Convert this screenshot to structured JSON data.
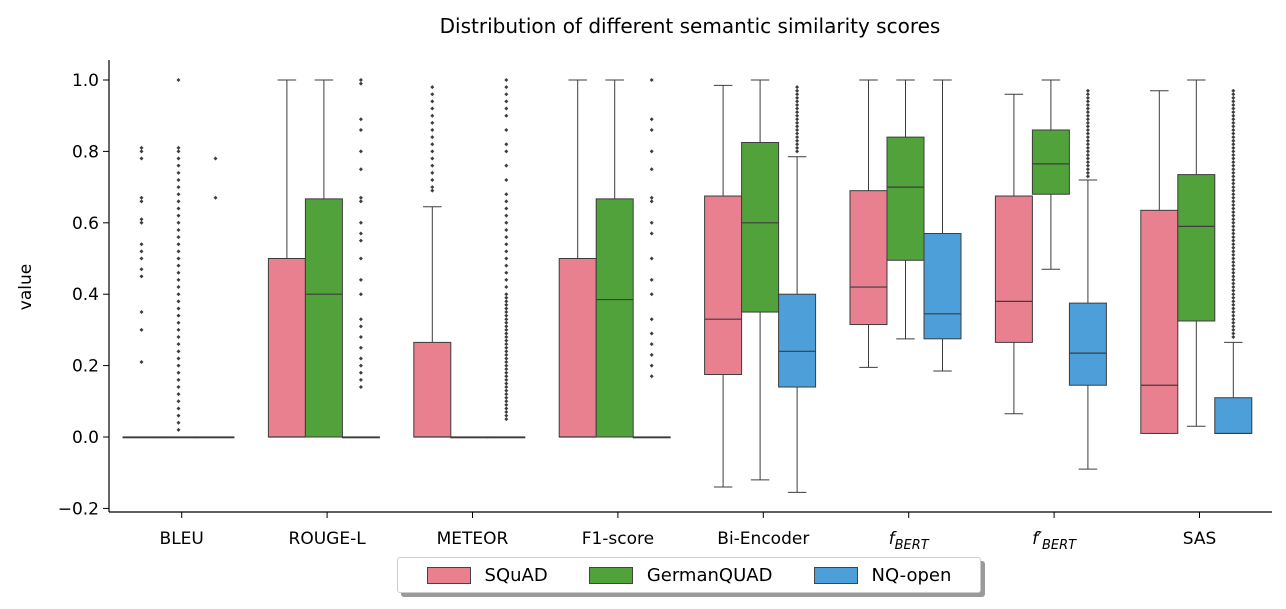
{
  "chart_data": {
    "type": "box",
    "title": "Distribution of different semantic similarity scores",
    "xlabel": "",
    "ylabel": "value",
    "ylim": [
      -0.2,
      1.05
    ],
    "yticks": [
      "−0.2",
      "0.0",
      "0.2",
      "0.4",
      "0.6",
      "0.8",
      "1.0"
    ],
    "yticks_values": [
      -0.2,
      0.0,
      0.2,
      0.4,
      0.6,
      0.8,
      1.0
    ],
    "grid": false,
    "legend_position": "bottom-center",
    "categories": [
      "BLEU",
      "ROUGE-L",
      "METEOR",
      "F1-score",
      "Bi-Encoder",
      "f_BERT",
      "f'_BERT",
      "SAS"
    ],
    "category_labels": [
      {
        "main": "BLEU",
        "sub": ""
      },
      {
        "main": "ROUGE-L",
        "sub": ""
      },
      {
        "main": "METEOR",
        "sub": ""
      },
      {
        "main": "F1-score",
        "sub": ""
      },
      {
        "main": "Bi-Encoder",
        "sub": ""
      },
      {
        "main": "f",
        "sub": "BERT"
      },
      {
        "main": "f′",
        "sub": "BERT"
      },
      {
        "main": "SAS",
        "sub": ""
      }
    ],
    "series": [
      {
        "name": "SQuAD",
        "color": "#e8808f",
        "boxes": [
          {
            "min": 0,
            "q1": 0,
            "median": 0,
            "q3": 0,
            "max": 0,
            "outliers": [
              0.21,
              0.3,
              0.35,
              0.45,
              0.47,
              0.5,
              0.52,
              0.54,
              0.6,
              0.61,
              0.66,
              0.67,
              0.78,
              0.8,
              0.81
            ]
          },
          {
            "min": 0,
            "q1": 0,
            "median": 0,
            "q3": 0.5,
            "max": 1.0,
            "outliers": []
          },
          {
            "min": 0,
            "q1": 0,
            "median": 0,
            "q3": 0.265,
            "max": 0.645,
            "outliers": [
              0.69,
              0.7,
              0.72,
              0.74,
              0.76,
              0.78,
              0.8,
              0.82,
              0.84,
              0.86,
              0.88,
              0.9,
              0.92,
              0.94,
              0.96,
              0.98
            ]
          },
          {
            "min": 0,
            "q1": 0,
            "median": 0,
            "q3": 0.5,
            "max": 1.0,
            "outliers": []
          },
          {
            "min": -0.14,
            "q1": 0.175,
            "median": 0.33,
            "q3": 0.675,
            "max": 0.985,
            "outliers": []
          },
          {
            "min": 0.195,
            "q1": 0.315,
            "median": 0.42,
            "q3": 0.69,
            "max": 1.0,
            "outliers": []
          },
          {
            "min": 0.065,
            "q1": 0.265,
            "median": 0.38,
            "q3": 0.675,
            "max": 0.96,
            "outliers": []
          },
          {
            "min": 0.01,
            "q1": 0.01,
            "median": 0.145,
            "q3": 0.635,
            "max": 0.97,
            "outliers": []
          }
        ]
      },
      {
        "name": "GermanQUAD",
        "color": "#52a23c",
        "boxes": [
          {
            "min": 0,
            "q1": 0,
            "median": 0,
            "q3": 0,
            "max": 0,
            "outliers": [
              0.02,
              0.04,
              0.06,
              0.08,
              0.1,
              0.12,
              0.14,
              0.16,
              0.18,
              0.2,
              0.22,
              0.24,
              0.26,
              0.28,
              0.3,
              0.32,
              0.34,
              0.36,
              0.38,
              0.4,
              0.42,
              0.44,
              0.46,
              0.48,
              0.5,
              0.52,
              0.54,
              0.56,
              0.58,
              0.6,
              0.62,
              0.64,
              0.66,
              0.68,
              0.7,
              0.72,
              0.74,
              0.76,
              0.78,
              0.8,
              0.81,
              1.0
            ]
          },
          {
            "min": 0,
            "q1": 0,
            "median": 0.4,
            "q3": 0.667,
            "max": 1.0,
            "outliers": []
          },
          {
            "min": 0,
            "q1": 0,
            "median": 0,
            "q3": 0,
            "max": 0,
            "outliers": []
          },
          {
            "min": 0,
            "q1": 0,
            "median": 0.385,
            "q3": 0.667,
            "max": 1.0,
            "outliers": []
          },
          {
            "min": -0.12,
            "q1": 0.35,
            "median": 0.6,
            "q3": 0.825,
            "max": 1.0,
            "outliers": []
          },
          {
            "min": 0.275,
            "q1": 0.495,
            "median": 0.7,
            "q3": 0.84,
            "max": 1.0,
            "outliers": []
          },
          {
            "min": 0.47,
            "q1": 0.68,
            "median": 0.765,
            "q3": 0.86,
            "max": 1.0,
            "outliers": []
          },
          {
            "min": 0.03,
            "q1": 0.325,
            "median": 0.59,
            "q3": 0.735,
            "max": 1.0,
            "outliers": []
          }
        ]
      },
      {
        "name": "NQ-open",
        "color": "#4c9fd9",
        "boxes": [
          {
            "min": 0,
            "q1": 0,
            "median": 0,
            "q3": 0,
            "max": 0,
            "outliers": [
              0.67,
              0.78
            ]
          },
          {
            "min": 0,
            "q1": 0,
            "median": 0,
            "q3": 0,
            "max": 0,
            "outliers": [
              0.14,
              0.16,
              0.18,
              0.2,
              0.22,
              0.25,
              0.28,
              0.31,
              0.33,
              0.4,
              0.44,
              0.5,
              0.55,
              0.57,
              0.6,
              0.66,
              0.67,
              0.75,
              0.8,
              0.86,
              0.89,
              0.99,
              1.0
            ]
          },
          {
            "min": 0,
            "q1": 0,
            "median": 0,
            "q3": 0,
            "max": 0,
            "outliers": [
              0.05,
              0.06,
              0.07,
              0.08,
              0.09,
              0.1,
              0.11,
              0.12,
              0.13,
              0.14,
              0.15,
              0.16,
              0.17,
              0.18,
              0.19,
              0.2,
              0.21,
              0.22,
              0.23,
              0.24,
              0.25,
              0.26,
              0.27,
              0.28,
              0.29,
              0.3,
              0.31,
              0.32,
              0.33,
              0.34,
              0.35,
              0.36,
              0.37,
              0.38,
              0.39,
              0.4,
              0.42,
              0.44,
              0.46,
              0.48,
              0.5,
              0.52,
              0.54,
              0.56,
              0.58,
              0.6,
              0.62,
              0.64,
              0.66,
              0.68,
              0.72,
              0.76,
              0.8,
              0.82,
              0.86,
              0.9,
              0.92,
              0.94,
              0.96,
              0.98,
              1.0
            ]
          },
          {
            "min": 0,
            "q1": 0,
            "median": 0,
            "q3": 0,
            "max": 0,
            "outliers": [
              0.17,
              0.2,
              0.23,
              0.26,
              0.29,
              0.33,
              0.4,
              0.44,
              0.5,
              0.57,
              0.6,
              0.66,
              0.67,
              0.75,
              0.8,
              0.86,
              0.89,
              1.0
            ]
          },
          {
            "min": -0.155,
            "q1": 0.14,
            "median": 0.24,
            "q3": 0.4,
            "max": 0.785,
            "outliers": [
              0.8,
              0.81,
              0.82,
              0.83,
              0.84,
              0.85,
              0.86,
              0.87,
              0.88,
              0.89,
              0.9,
              0.91,
              0.92,
              0.93,
              0.94,
              0.95,
              0.96,
              0.97,
              0.98
            ]
          },
          {
            "min": 0.185,
            "q1": 0.275,
            "median": 0.345,
            "q3": 0.57,
            "max": 1.0,
            "outliers": []
          },
          {
            "min": -0.09,
            "q1": 0.145,
            "median": 0.235,
            "q3": 0.375,
            "max": 0.72,
            "outliers": [
              0.73,
              0.74,
              0.75,
              0.76,
              0.77,
              0.78,
              0.79,
              0.8,
              0.81,
              0.82,
              0.83,
              0.84,
              0.85,
              0.86,
              0.87,
              0.88,
              0.89,
              0.9,
              0.91,
              0.92,
              0.93,
              0.94,
              0.95,
              0.96,
              0.97
            ]
          },
          {
            "min": 0.01,
            "q1": 0.01,
            "median": 0.01,
            "q3": 0.11,
            "max": 0.265,
            "outliers": [
              0.28,
              0.29,
              0.3,
              0.31,
              0.32,
              0.33,
              0.34,
              0.35,
              0.36,
              0.37,
              0.38,
              0.39,
              0.4,
              0.41,
              0.42,
              0.43,
              0.44,
              0.45,
              0.46,
              0.47,
              0.48,
              0.49,
              0.5,
              0.51,
              0.52,
              0.53,
              0.54,
              0.55,
              0.56,
              0.57,
              0.58,
              0.59,
              0.6,
              0.61,
              0.62,
              0.63,
              0.64,
              0.65,
              0.66,
              0.67,
              0.68,
              0.69,
              0.7,
              0.71,
              0.72,
              0.73,
              0.74,
              0.75,
              0.76,
              0.77,
              0.78,
              0.79,
              0.8,
              0.81,
              0.82,
              0.83,
              0.84,
              0.85,
              0.86,
              0.87,
              0.88,
              0.89,
              0.9,
              0.91,
              0.92,
              0.93,
              0.94,
              0.95,
              0.96,
              0.97
            ]
          }
        ]
      }
    ]
  }
}
